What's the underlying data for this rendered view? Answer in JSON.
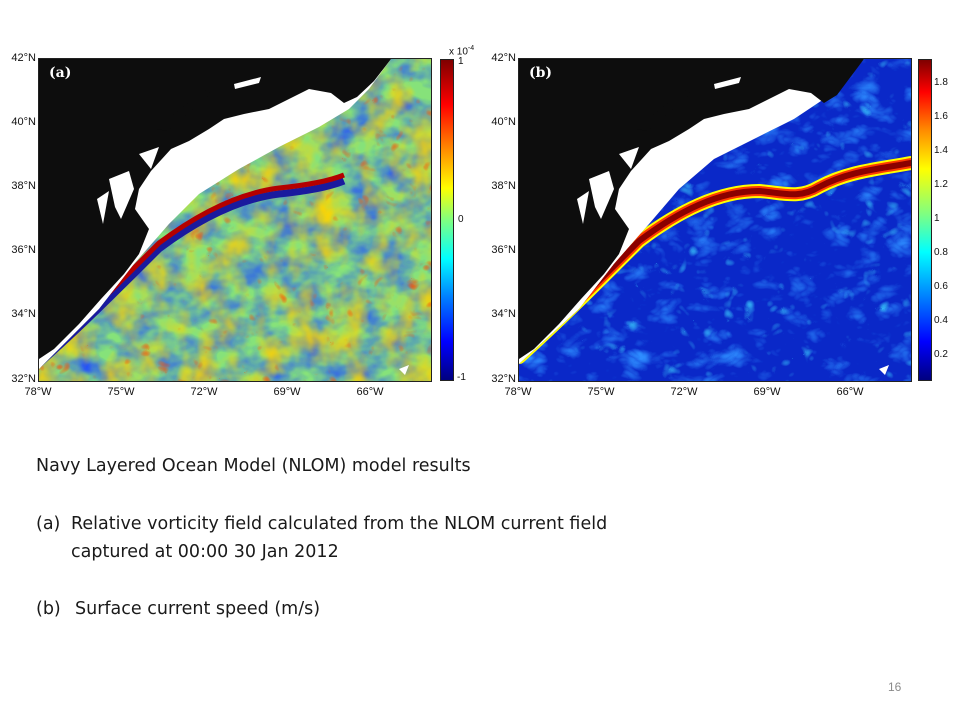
{
  "panel_a": {
    "label": "(a)",
    "colorbar": {
      "exponent_label": "x 10",
      "exponent_power": "-4",
      "ticks": [
        "1",
        "0",
        "-1"
      ],
      "tick_values": [
        1,
        0,
        -1
      ]
    }
  },
  "panel_b": {
    "label": "(b)",
    "colorbar": {
      "ticks": [
        "1.8",
        "1.6",
        "1.4",
        "1.2",
        "1",
        "0.8",
        "0.6",
        "0.4",
        "0.2"
      ],
      "tick_values": [
        1.8,
        1.6,
        1.4,
        1.2,
        1.0,
        0.8,
        0.6,
        0.4,
        0.2
      ],
      "range": [
        0.05,
        1.95
      ]
    }
  },
  "lat_ticks": [
    "42°N",
    "40°N",
    "38°N",
    "36°N",
    "34°N",
    "32°N"
  ],
  "lon_ticks": [
    "78°W",
    "75°W",
    "72°W",
    "69°W",
    "66°W"
  ],
  "caption": {
    "line1": "Navy Layered Ocean Model (NLOM) model results",
    "line2a_prefix": "(a)",
    "line2a": "Relative vorticity field calculated from the NLOM current field",
    "line2b": "captured at 00:00 30 Jan 2012",
    "line3_prefix": "(b)",
    "line3": "Surface current speed (m/s)"
  },
  "page_number": "16",
  "colors": {
    "land": "#0d0d0d",
    "jet_low": "#00007f",
    "jet_high": "#7f0000",
    "ocean_a_base": "#86e27a",
    "ocean_b_base": "#0a28c8"
  }
}
